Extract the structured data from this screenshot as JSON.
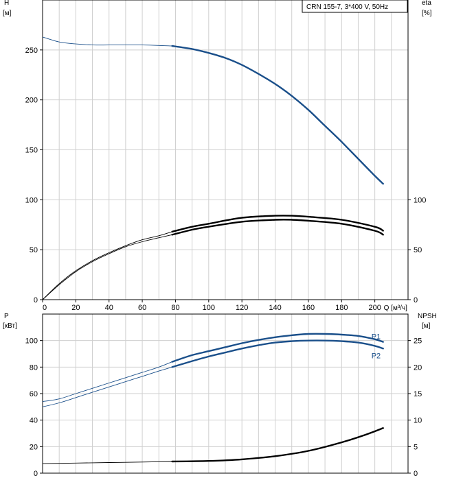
{
  "chart_data": [
    {
      "type": "line",
      "title": "CRN 155-7, 3*400 V, 50Hz",
      "xlabel": "Q [м³/ч]",
      "xlim": [
        0,
        220
      ],
      "xticks": [
        0,
        20,
        40,
        60,
        80,
        100,
        120,
        140,
        160,
        180,
        200
      ],
      "left_axis": {
        "label": "H",
        "unit": "[м]",
        "ylim": [
          0,
          300
        ],
        "ticks": [
          0,
          50,
          100,
          150,
          200,
          250
        ]
      },
      "right_axis": {
        "label": "eta",
        "unit": "[%]",
        "ylim": [
          0,
          300
        ],
        "ticks": [
          0,
          50,
          100
        ]
      },
      "grid": true,
      "series": [
        {
          "name": "",
          "axis": "left",
          "color": "#1a4f8a",
          "thin_x": [
            0,
            10,
            20,
            30,
            40,
            50,
            60,
            70,
            78
          ],
          "thin_y": [
            263,
            258,
            256,
            255,
            255,
            255,
            255,
            254.5,
            254
          ],
          "x": [
            78,
            90,
            100,
            110,
            120,
            130,
            140,
            150,
            160,
            170,
            180,
            190,
            200,
            205
          ],
          "y": [
            254,
            251,
            247,
            242,
            235,
            226,
            216,
            204,
            190,
            174,
            158,
            141,
            124,
            116
          ]
        },
        {
          "name": "",
          "axis": "right",
          "color": "#000000",
          "thin_x": [
            0,
            10,
            20,
            30,
            40,
            50,
            60,
            70,
            78
          ],
          "thin_y": [
            0,
            16,
            29,
            39,
            47,
            54,
            60,
            64,
            68
          ],
          "x": [
            78,
            90,
            100,
            120,
            140,
            150,
            160,
            180,
            200,
            205
          ],
          "y": [
            68,
            73,
            76,
            82,
            84,
            84,
            83,
            80,
            73,
            69
          ]
        },
        {
          "name": "",
          "axis": "right",
          "color": "#000000",
          "thin_x": [
            0,
            10,
            20,
            30,
            40,
            50,
            60,
            70,
            78
          ],
          "thin_y": [
            0,
            15,
            28,
            38,
            46,
            53,
            58,
            62,
            65
          ],
          "x": [
            78,
            90,
            100,
            120,
            140,
            150,
            160,
            180,
            200,
            205
          ],
          "y": [
            65,
            70,
            73,
            78,
            80,
            80,
            79,
            76,
            69,
            65
          ]
        }
      ]
    },
    {
      "type": "line",
      "xlim": [
        0,
        220
      ],
      "left_axis": {
        "label": "P",
        "unit": "[кВт]",
        "ylim": [
          0,
          120
        ],
        "ticks": [
          0,
          20,
          40,
          60,
          80,
          100
        ]
      },
      "right_axis": {
        "label": "NPSH",
        "unit": "[м]",
        "ylim": [
          0,
          30
        ],
        "ticks": [
          0,
          5,
          10,
          15,
          20,
          25
        ]
      },
      "grid": true,
      "series": [
        {
          "name": "P1",
          "axis": "left",
          "color": "#1a4f8a",
          "thin_x": [
            0,
            10,
            20,
            30,
            40,
            50,
            60,
            70,
            78
          ],
          "thin_y": [
            54,
            56,
            60,
            64,
            68,
            72,
            76,
            80,
            84
          ],
          "x": [
            78,
            90,
            100,
            110,
            120,
            130,
            140,
            150,
            160,
            170,
            180,
            190,
            200,
            205
          ],
          "y": [
            84,
            89,
            92,
            95,
            98,
            100.5,
            102.5,
            104,
            105,
            105,
            104.5,
            103.5,
            101,
            99
          ]
        },
        {
          "name": "P2",
          "axis": "left",
          "color": "#1a4f8a",
          "thin_x": [
            0,
            10,
            20,
            30,
            40,
            50,
            60,
            70,
            78
          ],
          "thin_y": [
            50,
            53,
            57,
            61,
            65,
            69,
            73,
            77,
            80
          ],
          "x": [
            78,
            90,
            100,
            110,
            120,
            130,
            140,
            150,
            160,
            170,
            180,
            190,
            200,
            205
          ],
          "y": [
            80,
            84.5,
            88,
            91,
            94,
            96.5,
            98.5,
            99.5,
            100,
            100,
            99.5,
            98.5,
            96,
            94
          ]
        },
        {
          "name": "",
          "axis": "right",
          "color": "#000000",
          "thin_x": [
            0,
            20,
            40,
            60,
            78
          ],
          "thin_y": [
            1.8,
            1.9,
            2.0,
            2.1,
            2.2
          ],
          "x": [
            78,
            100,
            120,
            140,
            160,
            180,
            195,
            205
          ],
          "y": [
            2.2,
            2.3,
            2.6,
            3.2,
            4.2,
            5.8,
            7.3,
            8.5
          ]
        }
      ]
    }
  ]
}
